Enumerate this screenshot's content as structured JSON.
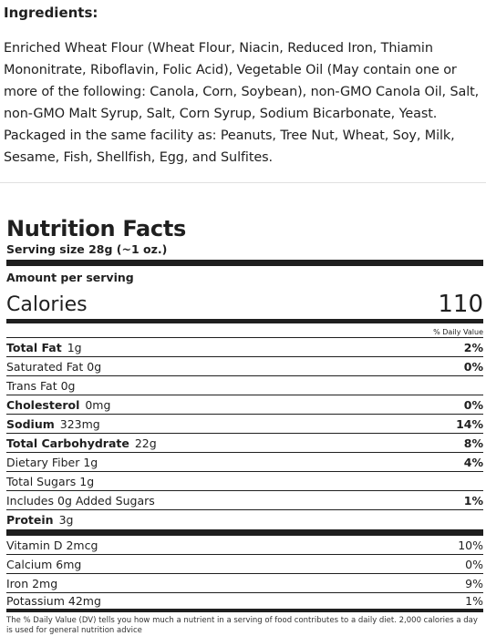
{
  "ingredients": {
    "title": "Ingredients:",
    "text": "Enriched Wheat Flour (Wheat Flour, Niacin, Reduced Iron, Thiamin Mononitrate, Riboflavin, Folic Acid), Vegetable Oil (May contain one or more of the following: Canola, Corn, Soybean), non-GMO Canola Oil, Salt, non-GMO Malt Syrup, Salt, Corn Syrup, Sodium Bicarbonate, Yeast. Packaged in the same facility as: Peanuts, Tree Nut, Wheat, Soy, Milk, Sesame, Fish, Shellfish, Egg, and Sulfites."
  },
  "nutrition": {
    "title": "Nutrition Facts",
    "serving": "Serving size 28g (~1 oz.)",
    "amount_per_serving": "Amount per serving",
    "calories_label": "Calories",
    "calories_value": "110",
    "dv_header": "% Daily Value",
    "rows": [
      {
        "name": "Total Fat",
        "amount": "1g",
        "pct": "2%"
      },
      {
        "name": "Saturated Fat 0g",
        "amount": "",
        "pct": "0%"
      },
      {
        "name": "Trans Fat 0g",
        "amount": "",
        "pct": ""
      },
      {
        "name": "Cholesterol",
        "amount": "0mg",
        "pct": "0%"
      },
      {
        "name": "Sodium",
        "amount": "323mg",
        "pct": "14%"
      },
      {
        "name": "Total Carbohydrate",
        "amount": "22g",
        "pct": "8%"
      },
      {
        "name": "Dietary Fiber 1g",
        "amount": "",
        "pct": "4%"
      },
      {
        "name": "Total Sugars 1g",
        "amount": "",
        "pct": ""
      },
      {
        "name": "Includes 0g Added Sugars",
        "amount": "",
        "pct": "1%"
      },
      {
        "name": "Protein",
        "amount": "3g",
        "pct": ""
      }
    ],
    "vitamins": [
      {
        "name": "Vitamin D 2mcg",
        "pct": "10%"
      },
      {
        "name": "Calcium 6mg",
        "pct": "0%"
      },
      {
        "name": "Iron 2mg",
        "pct": "9%"
      },
      {
        "name": "Potassium 42mg",
        "pct": "1%"
      }
    ],
    "footnote": "The % Daily Value (DV) tells you how much a nutrient in a serving of food contributes to a daily diet. 2,000 calories a day is used for general nutrition advice"
  }
}
